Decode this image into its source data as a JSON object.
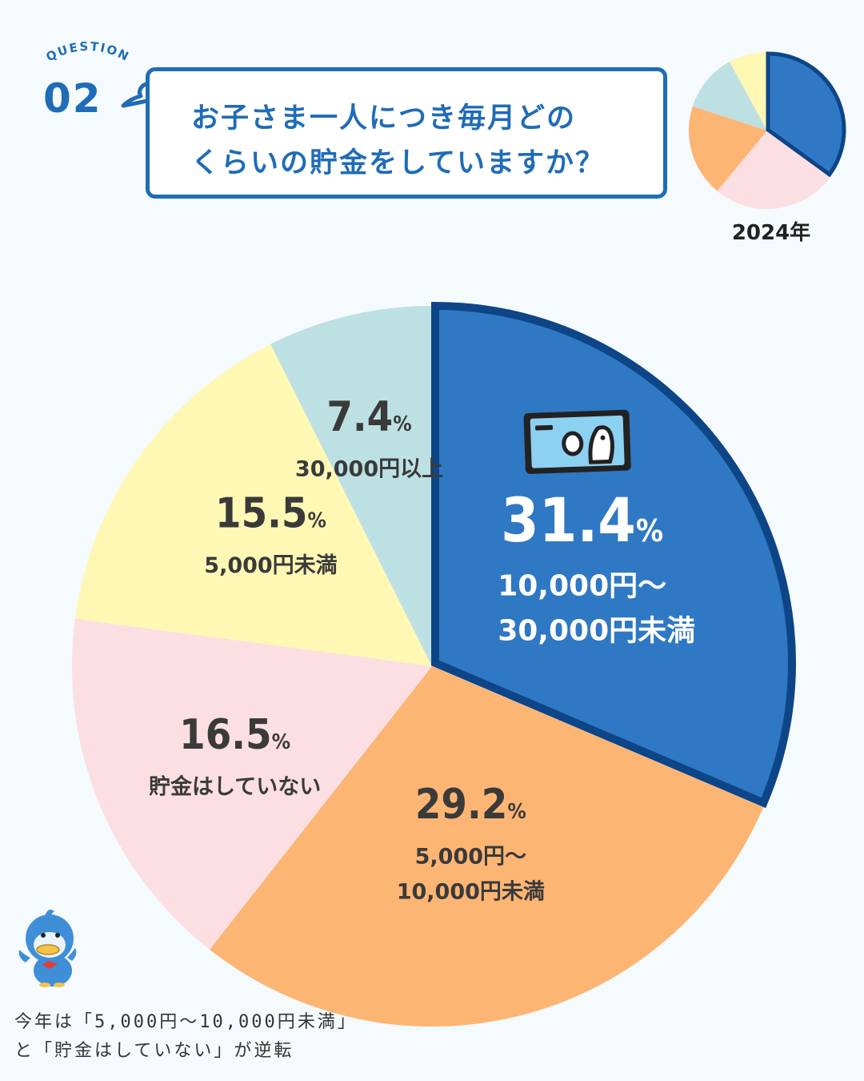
{
  "header": {
    "eyebrow": "QUESTION",
    "number": "02",
    "question_line1": "お子さま一人につき毎月どの",
    "question_line2": "くらいの貯金をしていますか？",
    "accent_color": "#1f6cb8"
  },
  "comparison": {
    "year_label": "2024年",
    "icon": "mini-pie-icon"
  },
  "chart_data": {
    "type": "pie",
    "title": "",
    "start": "12 o'clock, clockwise",
    "slices": [
      {
        "label_lines": [
          "10,000円〜",
          "30,000円未満"
        ],
        "value": 31.4,
        "value_text": "31.4",
        "color": "#2f78c4",
        "highlight": true
      },
      {
        "label_lines": [
          "5,000円〜",
          "10,000円未満"
        ],
        "value": 29.2,
        "value_text": "29.2",
        "color": "#fdb574"
      },
      {
        "label_lines": [
          "貯金はしていない"
        ],
        "value": 16.5,
        "value_text": "16.5",
        "color": "#fbdfe3"
      },
      {
        "label_lines": [
          "5,000円未満"
        ],
        "value": 15.5,
        "value_text": "15.5",
        "color": "#fff8b4"
      },
      {
        "label_lines": [
          "30,000円以上"
        ],
        "value": 7.4,
        "value_text": "7.4",
        "color": "#bde0e3"
      }
    ],
    "percent_sign": "%",
    "highlight_border_color": "#0d4587",
    "highlight_icon": "banknote-icon"
  },
  "previous_year_chart": {
    "type": "pie",
    "year": "2024年",
    "slices": [
      {
        "value": 35,
        "color": "#2f78c4",
        "highlight": true
      },
      {
        "value": 26,
        "color": "#fbdfe3"
      },
      {
        "value": 19,
        "color": "#fdb574"
      },
      {
        "value": 12,
        "color": "#bde0e3"
      },
      {
        "value": 8,
        "color": "#fff8b4"
      }
    ]
  },
  "mascot": {
    "icon": "bird-mascot-icon"
  },
  "comment": {
    "line1": "今年は「5,000円〜10,000円未満」",
    "line2": "と「貯金はしていない」が逆転"
  }
}
